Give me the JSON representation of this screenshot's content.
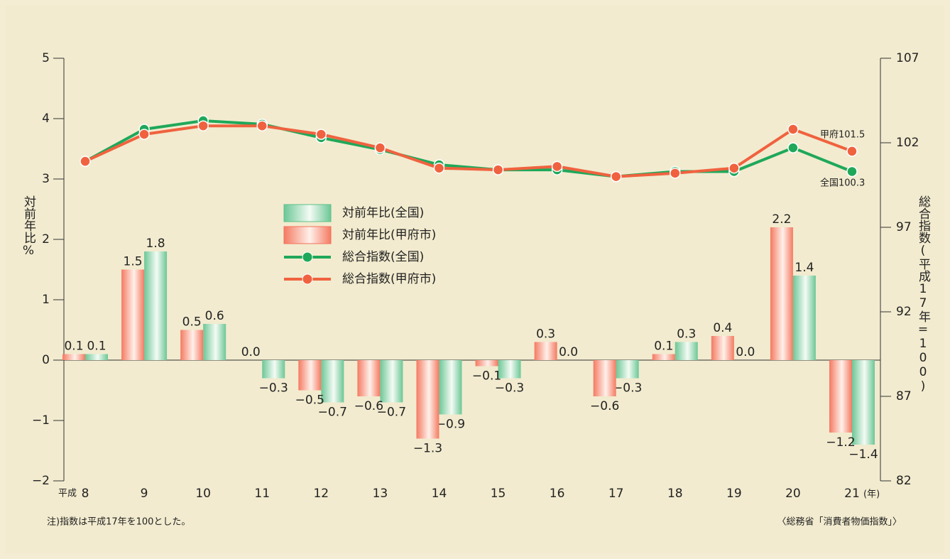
{
  "chart_data": {
    "type": "bar-line",
    "categories": [
      "8",
      "9",
      "10",
      "11",
      "12",
      "13",
      "14",
      "15",
      "16",
      "17",
      "18",
      "19",
      "20",
      "21"
    ],
    "x_prefix": "平成",
    "x_unit": "(年)",
    "ylabel": "対前年比%",
    "y2label": "総合指数(平成17年=100)",
    "ylim": [
      -2,
      5
    ],
    "yticks": [
      {
        "value": -2,
        "label": "−2"
      },
      {
        "value": -1,
        "label": "−1"
      },
      0,
      1,
      2,
      3,
      4,
      5
    ],
    "y2lim": [
      82,
      107
    ],
    "y2ticks": [
      82,
      87,
      92,
      97,
      102,
      107
    ],
    "series": [
      {
        "name": "対前年比(全国)",
        "kind": "bar",
        "color": "#5cc08a",
        "values": [
          0.1,
          1.8,
          0.6,
          -0.3,
          -0.7,
          -0.7,
          -0.9,
          -0.3,
          0.0,
          -0.3,
          0.3,
          0.0,
          1.4,
          -1.4
        ],
        "value_labels": [
          "0.1",
          "1.8",
          "0.6",
          "−0.3",
          "−0.7",
          "−0.7",
          "−0.9",
          "−0.3",
          "0.0",
          "−0.3",
          "0.3",
          "0.0",
          "1.4",
          "−1.4"
        ]
      },
      {
        "name": "対前年比(甲府市)",
        "kind": "bar",
        "color": "#f4705a",
        "values": [
          0.1,
          1.5,
          0.5,
          0.0,
          -0.5,
          -0.6,
          -1.3,
          -0.1,
          0.3,
          -0.6,
          0.1,
          0.4,
          2.2,
          -1.2
        ],
        "value_labels": [
          "0.1",
          "1.5",
          "0.5",
          "0.0",
          "−0.5",
          "−0.6",
          "−1.3",
          "−0.1",
          "0.3",
          "−0.6",
          "0.1",
          "0.4",
          "2.2",
          "−1.2"
        ]
      },
      {
        "name": "総合指数(全国)",
        "kind": "line",
        "axis": "y2",
        "color": "#1fa85a",
        "values": [
          100.9,
          102.8,
          103.3,
          103.1,
          102.3,
          101.6,
          100.7,
          100.4,
          100.4,
          100.0,
          100.3,
          100.3,
          101.7,
          100.3
        ]
      },
      {
        "name": "総合指数(甲府市)",
        "kind": "line",
        "axis": "y2",
        "color": "#f0623f",
        "values": [
          100.9,
          102.5,
          103.0,
          103.0,
          102.5,
          101.7,
          100.5,
          100.4,
          100.6,
          100.0,
          100.2,
          100.5,
          102.8,
          101.5
        ]
      }
    ],
    "annotations": [
      "甲府101.5",
      "全国100.3"
    ],
    "notes": [
      "注)指数は平成17年を100とした。",
      "〈総務省「消費者物価指数」〉"
    ]
  }
}
